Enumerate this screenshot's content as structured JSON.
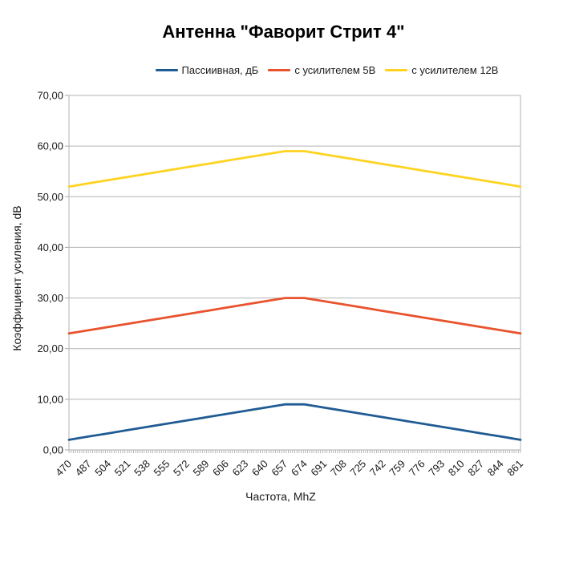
{
  "title": "Антенна \"Фаворит Стрит 4\"",
  "chart_data": {
    "type": "line",
    "title": "Антенна \"Фаворит Стрит 4\"",
    "xlabel": "Частота, MhZ",
    "ylabel": "Коэффициент усиления, dB",
    "x": [
      470,
      487,
      504,
      521,
      538,
      555,
      572,
      589,
      606,
      623,
      640,
      657,
      674,
      691,
      708,
      725,
      742,
      759,
      776,
      793,
      810,
      827,
      844,
      861
    ],
    "series": [
      {
        "name": "Пассиивная, дБ",
        "color": "#1f5b94",
        "values": [
          2.0,
          2.64,
          3.27,
          3.91,
          4.55,
          5.18,
          5.82,
          6.45,
          7.09,
          7.73,
          8.36,
          9.0,
          9.0,
          8.36,
          7.73,
          7.09,
          6.45,
          5.82,
          5.18,
          4.55,
          3.91,
          3.27,
          2.64,
          2.0
        ]
      },
      {
        "name": "с усилителем 5В",
        "color": "#e8532e",
        "values": [
          23.0,
          23.64,
          24.27,
          24.91,
          25.55,
          26.18,
          26.82,
          27.45,
          28.09,
          28.73,
          29.36,
          30.0,
          30.0,
          29.36,
          28.73,
          28.09,
          27.45,
          26.82,
          26.18,
          25.55,
          24.91,
          24.27,
          23.64,
          23.0
        ]
      },
      {
        "name": "с усилителем 12В",
        "color": "#ffd320",
        "values": [
          52.0,
          52.64,
          53.27,
          53.91,
          54.55,
          55.18,
          55.82,
          56.45,
          57.09,
          57.73,
          58.36,
          59.0,
          59.0,
          58.36,
          57.73,
          57.09,
          56.45,
          55.82,
          55.18,
          54.55,
          53.91,
          53.27,
          52.64,
          52.0
        ]
      }
    ],
    "ylim": [
      0,
      70
    ],
    "ytick_step": 10,
    "ytick_labels": [
      "0,00",
      "10,00",
      "20,00",
      "30,00",
      "40,00",
      "50,00",
      "60,00",
      "70,00"
    ],
    "grid": "horizontal-only",
    "gridline_color": "#b3b3b3",
    "tick_color": "#a6a6a6",
    "label_color": "#1a1a1a",
    "legend_position": "top",
    "x_minor_tick_count": 210
  }
}
